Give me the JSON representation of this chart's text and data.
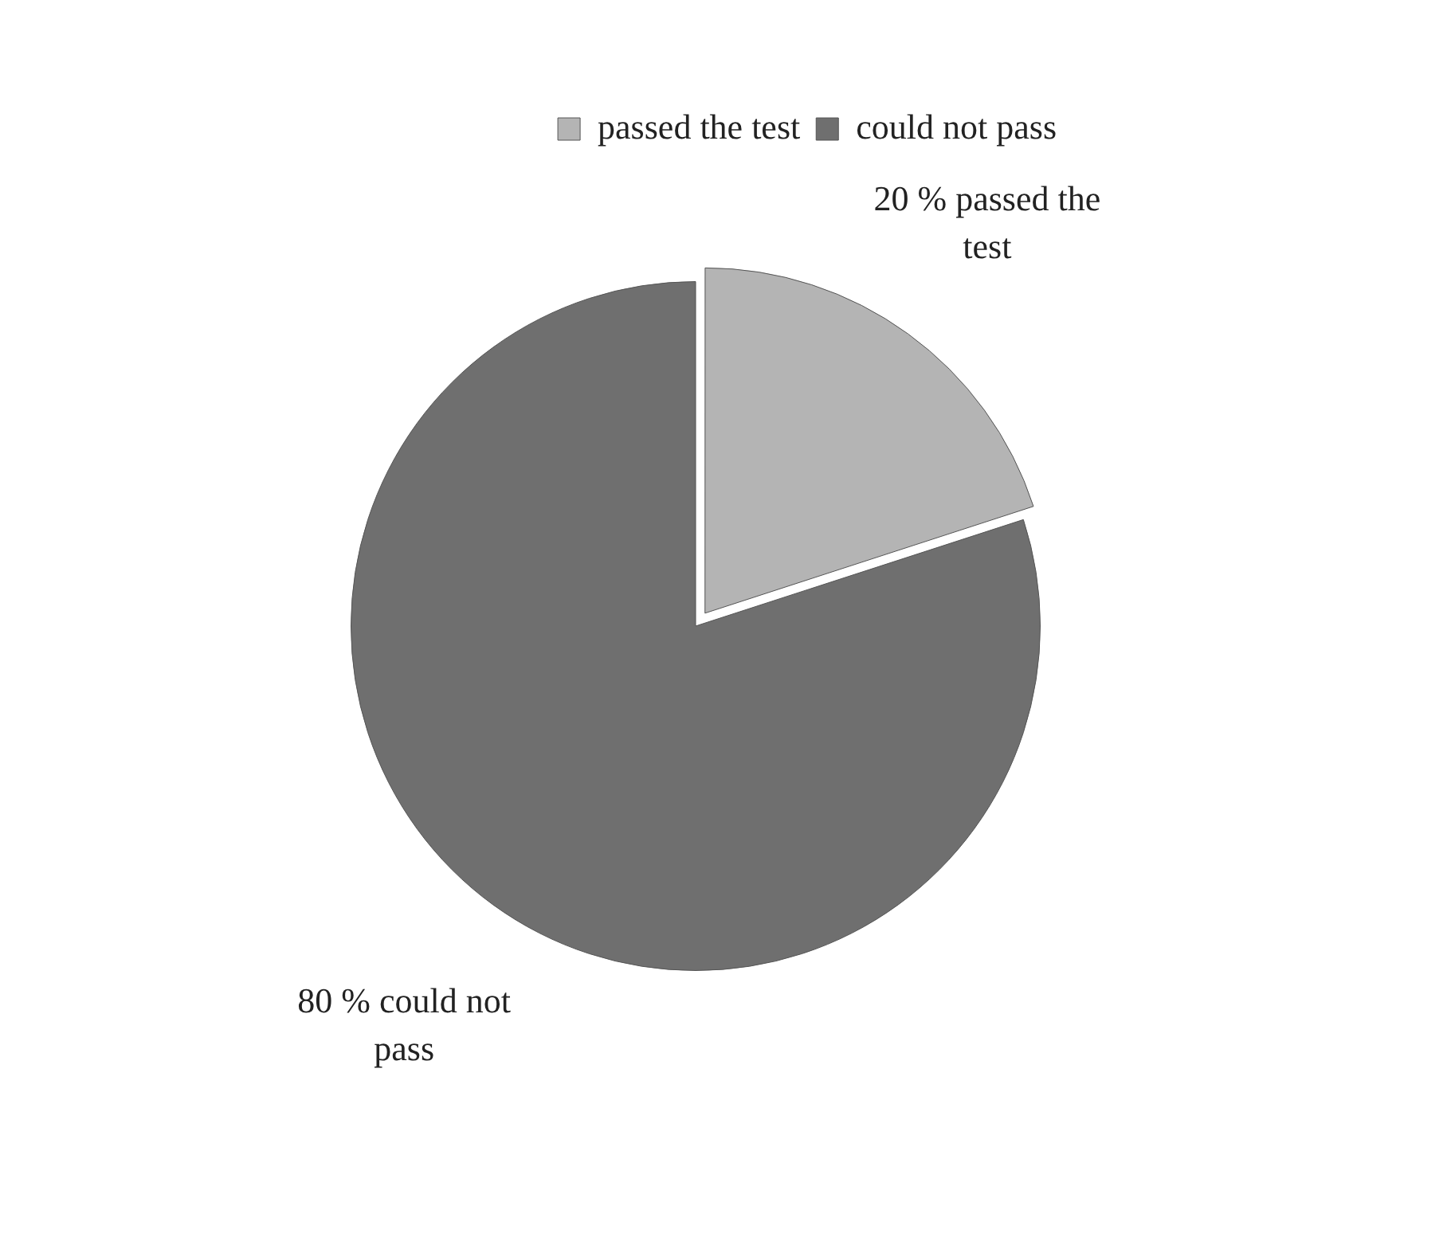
{
  "chart_data": {
    "type": "pie",
    "categories": [
      "passed the test",
      "could not pass"
    ],
    "values": [
      20,
      80
    ],
    "colors": [
      "#b4b4b4",
      "#6f6f6f"
    ],
    "value_labels": [
      "20 %  passed the test",
      "80 % could not pass"
    ],
    "legend": "top right"
  }
}
